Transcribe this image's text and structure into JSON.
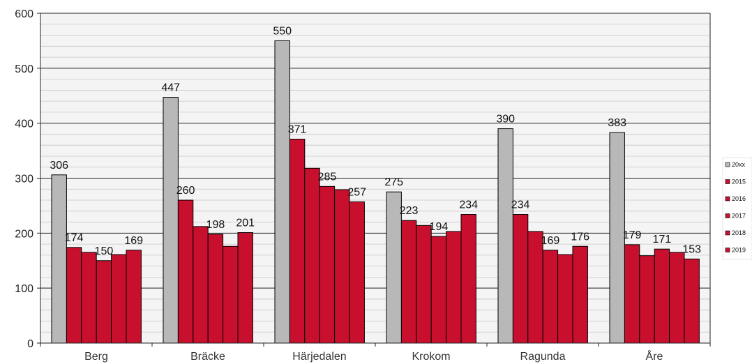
{
  "chart_data": {
    "type": "bar",
    "title": "",
    "xlabel": "",
    "ylabel": "",
    "ylim": [
      0,
      600
    ],
    "yticks": [
      0,
      100,
      200,
      300,
      400,
      500,
      600
    ],
    "grid": true,
    "legend_position": "right",
    "categories": [
      "Berg",
      "Bräcke",
      "Härjedalen",
      "Krokom",
      "Ragunda",
      "Åre"
    ],
    "series": [
      {
        "name": "20xx",
        "color": "#b8b8b8",
        "values": [
          306,
          447,
          550,
          275,
          390,
          383
        ]
      },
      {
        "name": "2015",
        "color": "#c8102e",
        "values": [
          174,
          260,
          371,
          223,
          234,
          179
        ]
      },
      {
        "name": "2016",
        "color": "#c8102e",
        "values": [
          165,
          212,
          318,
          214,
          203,
          159
        ]
      },
      {
        "name": "2017",
        "color": "#c8102e",
        "values": [
          150,
          198,
          285,
          194,
          169,
          171
        ]
      },
      {
        "name": "2018",
        "color": "#c8102e",
        "values": [
          161,
          176,
          279,
          203,
          161,
          165
        ]
      },
      {
        "name": "2019",
        "color": "#c8102e",
        "values": [
          169,
          201,
          257,
          234,
          176,
          153
        ]
      }
    ],
    "data_labels": [
      {
        "category": 0,
        "series": 0,
        "text": "306"
      },
      {
        "category": 0,
        "series": 1,
        "text": "174"
      },
      {
        "category": 0,
        "series": 3,
        "text": "150"
      },
      {
        "category": 0,
        "series": 5,
        "text": "169"
      },
      {
        "category": 1,
        "series": 0,
        "text": "447"
      },
      {
        "category": 1,
        "series": 1,
        "text": "260"
      },
      {
        "category": 1,
        "series": 3,
        "text": "198"
      },
      {
        "category": 1,
        "series": 5,
        "text": "201"
      },
      {
        "category": 2,
        "series": 0,
        "text": "550"
      },
      {
        "category": 2,
        "series": 1,
        "text": "371"
      },
      {
        "category": 2,
        "series": 3,
        "text": "285"
      },
      {
        "category": 2,
        "series": 5,
        "text": "257"
      },
      {
        "category": 3,
        "series": 0,
        "text": "275"
      },
      {
        "category": 3,
        "series": 1,
        "text": "223"
      },
      {
        "category": 3,
        "series": 3,
        "text": "194"
      },
      {
        "category": 3,
        "series": 5,
        "text": "234"
      },
      {
        "category": 4,
        "series": 0,
        "text": "390"
      },
      {
        "category": 4,
        "series": 1,
        "text": "234"
      },
      {
        "category": 4,
        "series": 3,
        "text": "169"
      },
      {
        "category": 4,
        "series": 5,
        "text": "176"
      },
      {
        "category": 5,
        "series": 0,
        "text": "383"
      },
      {
        "category": 5,
        "series": 1,
        "text": "179"
      },
      {
        "category": 5,
        "series": 3,
        "text": "171"
      },
      {
        "category": 5,
        "series": 5,
        "text": "153"
      }
    ]
  }
}
